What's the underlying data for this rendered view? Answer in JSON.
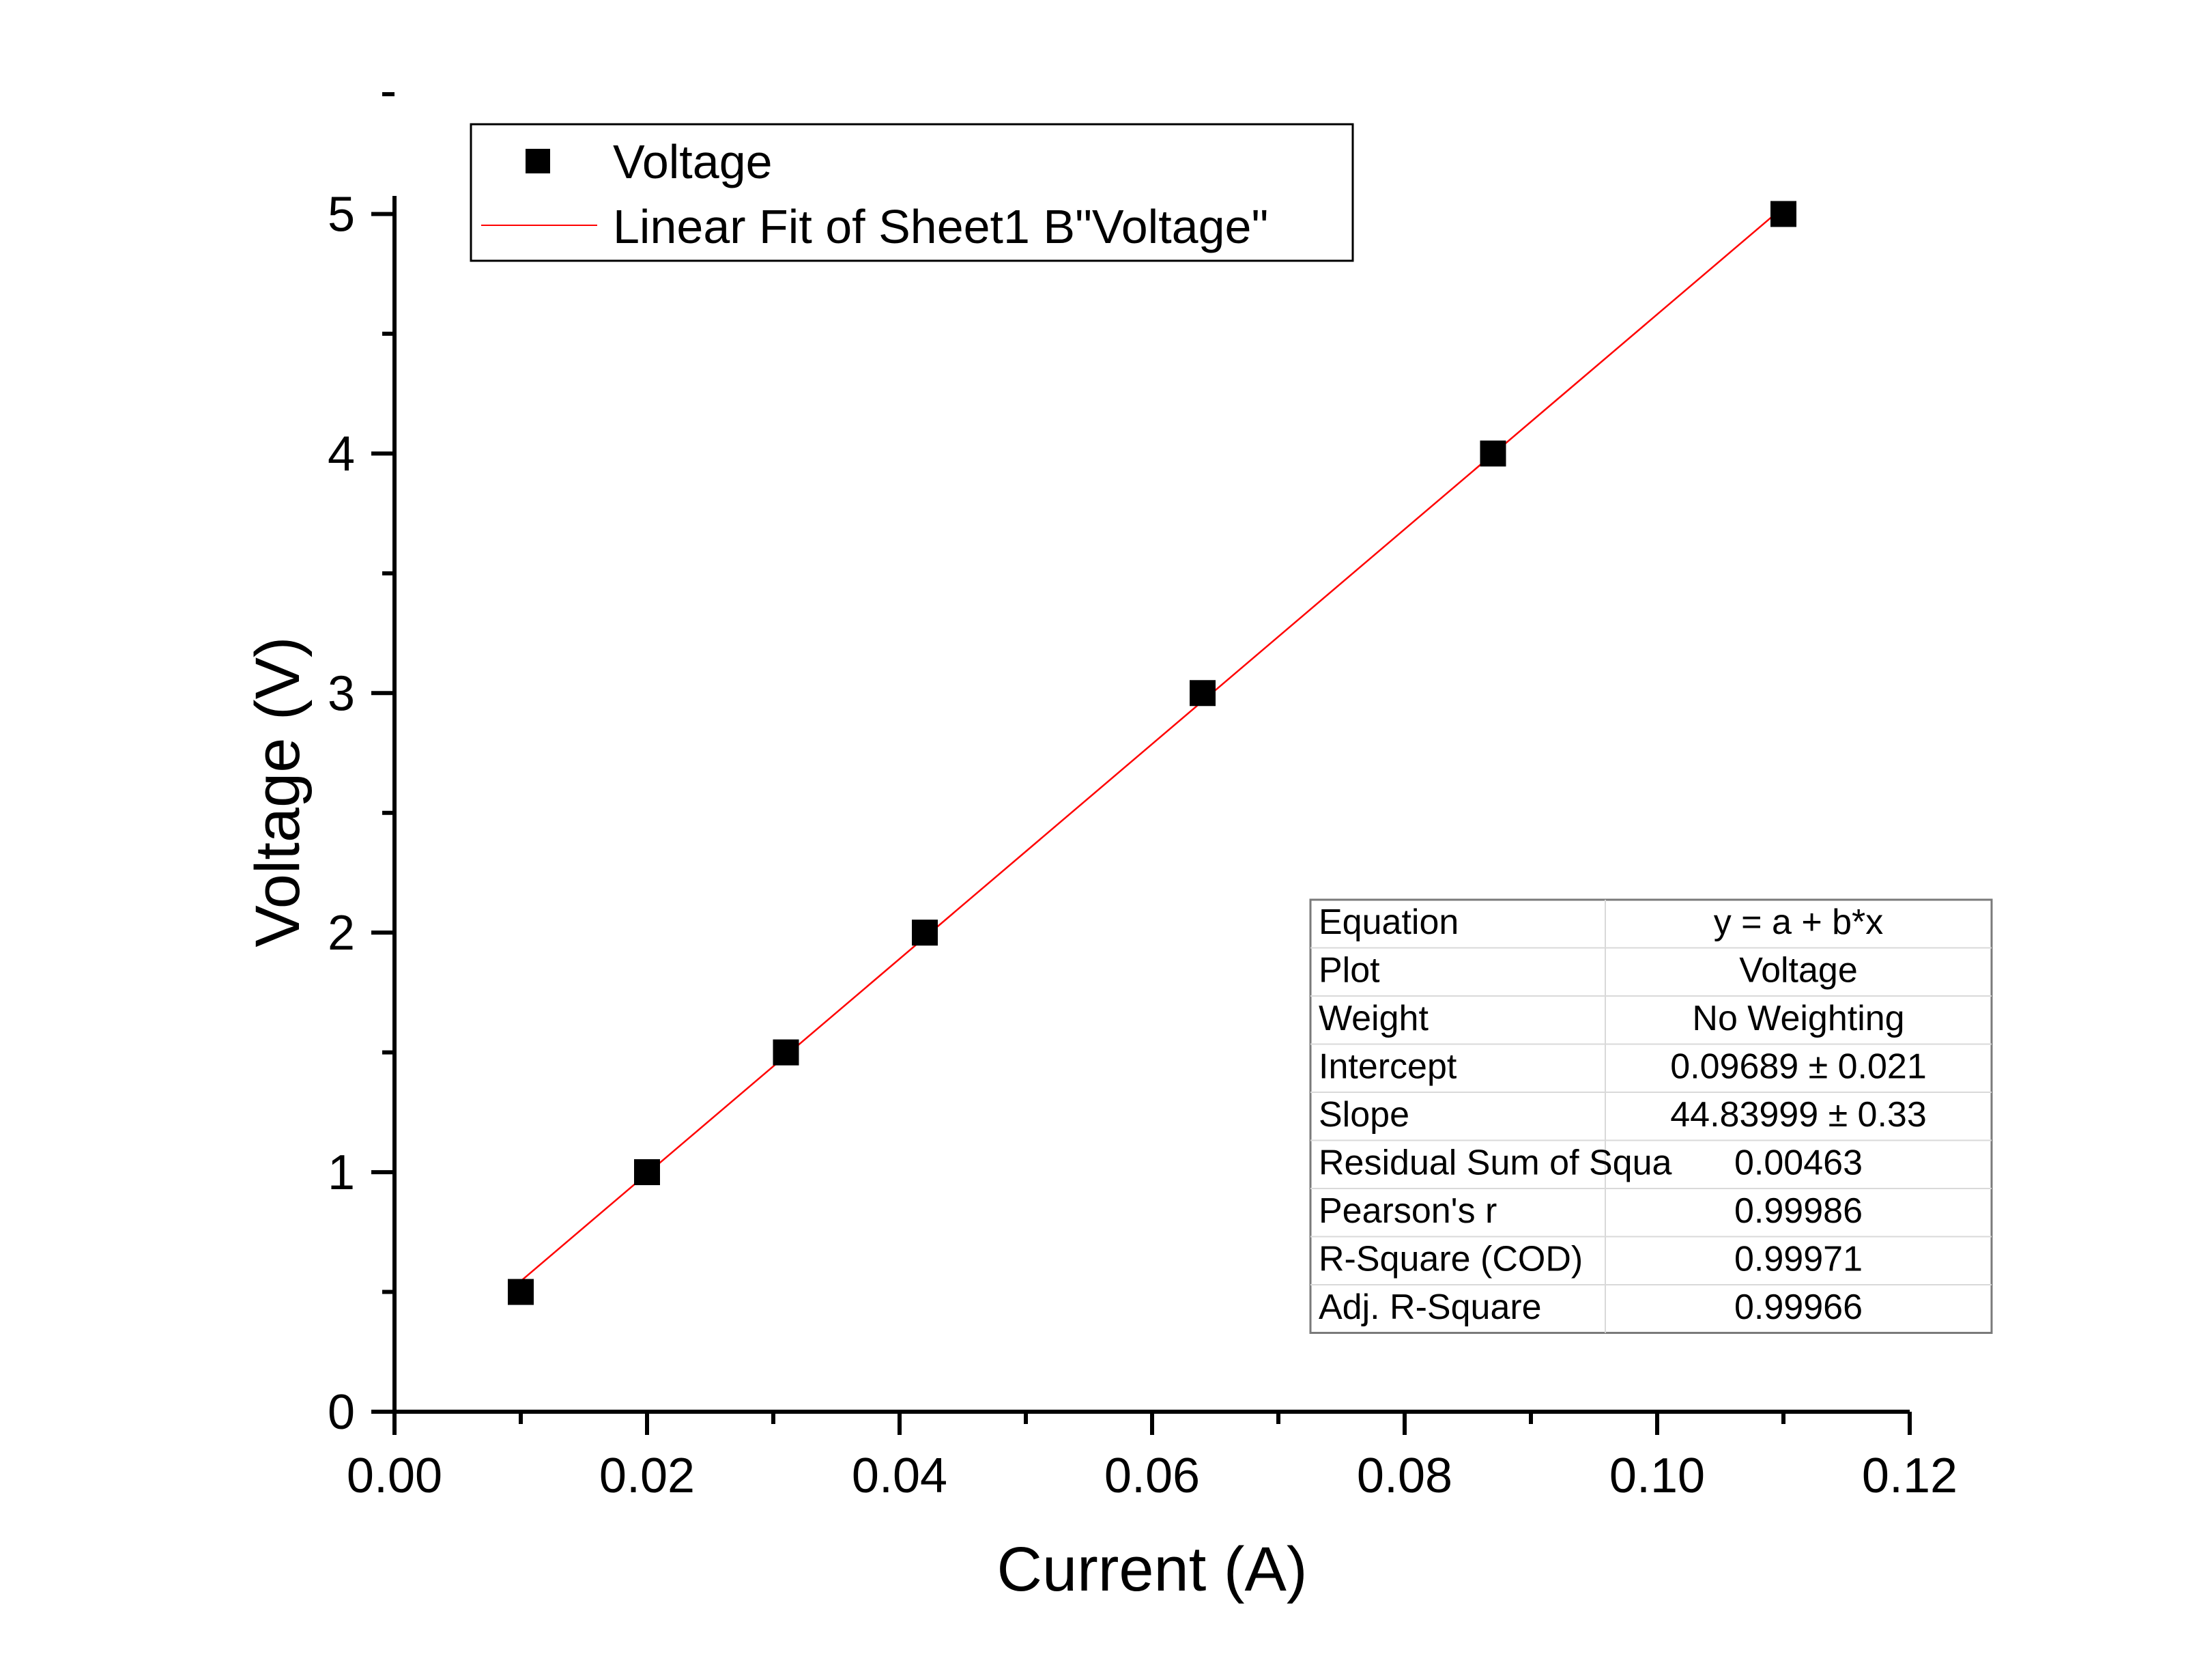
{
  "chart_data": {
    "type": "scatter",
    "xlabel": "Current (A)",
    "ylabel": "Voltage (V)",
    "xlim": [
      0,
      0.12
    ],
    "ylim": [
      0,
      5.5
    ],
    "x_ticks": [
      "0.00",
      "0.02",
      "0.04",
      "0.06",
      "0.08",
      "0.10",
      "0.12"
    ],
    "y_ticks": [
      "0",
      "1",
      "2",
      "3",
      "4",
      "5"
    ],
    "grid": false,
    "legend_position": "top-left",
    "series": [
      {
        "name": "Voltage",
        "marker": "square",
        "color": "#000000",
        "x": [
          0.01,
          0.02,
          0.031,
          0.042,
          0.064,
          0.087,
          0.11
        ],
        "y": [
          0.5,
          1.0,
          1.5,
          2.0,
          3.0,
          4.0,
          5.0
        ]
      }
    ],
    "fit": {
      "name": "Linear Fit of Sheet1 B\"Voltage\"",
      "color": "#ff0000",
      "intercept": 0.09689,
      "slope": 44.83999,
      "x_range": [
        0.01,
        0.11
      ]
    },
    "fit_table": {
      "rows": [
        [
          "Equation",
          "y = a + b*x"
        ],
        [
          "Plot",
          "Voltage"
        ],
        [
          "Weight",
          "No Weighting"
        ],
        [
          "Intercept",
          "0.09689 ± 0.021"
        ],
        [
          "Slope",
          "44.83999 ± 0.33"
        ],
        [
          "Residual Sum of Squa",
          "0.00463"
        ],
        [
          "Pearson's r",
          "0.99986"
        ],
        [
          "R-Square (COD)",
          "0.99971"
        ],
        [
          "Adj. R-Square",
          "0.99966"
        ]
      ]
    }
  }
}
